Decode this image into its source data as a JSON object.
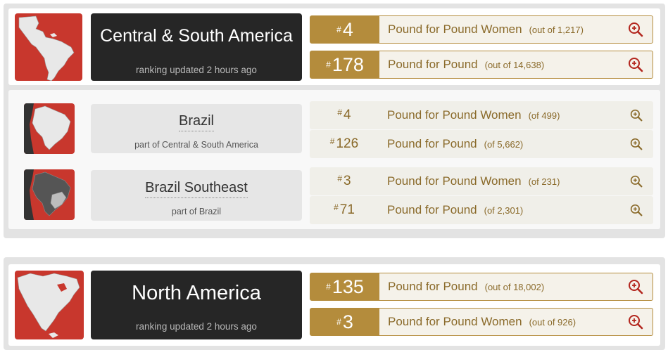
{
  "central_south_america": {
    "name": "Central & South America",
    "updated": "ranking updated 2 hours ago",
    "rankings": [
      {
        "hash": "#",
        "num": "4",
        "label": "Pound for Pound Women",
        "out_of": "(out of 1,217)"
      },
      {
        "hash": "#",
        "num": "178",
        "label": "Pound for Pound",
        "out_of": "(out of 14,638)"
      }
    ]
  },
  "brazil": {
    "name": "Brazil",
    "part_of": "part of Central & South America",
    "rankings": [
      {
        "hash": "#",
        "num": "4",
        "label": "Pound for Pound Women",
        "out_of": "(of 499)"
      },
      {
        "hash": "#",
        "num": "126",
        "label": "Pound for Pound",
        "out_of": "(of 5,662)"
      }
    ]
  },
  "brazil_southeast": {
    "name": "Brazil Southeast",
    "part_of": "part of Brazil",
    "rankings": [
      {
        "hash": "#",
        "num": "3",
        "label": "Pound for Pound Women",
        "out_of": "(of 231)"
      },
      {
        "hash": "#",
        "num": "71",
        "label": "Pound for Pound",
        "out_of": "(of 2,301)"
      }
    ]
  },
  "north_america": {
    "name": "North America",
    "updated": "ranking updated 2 hours ago",
    "rankings": [
      {
        "hash": "#",
        "num": "135",
        "label": "Pound for Pound",
        "out_of": "(out of 18,002)"
      },
      {
        "hash": "#",
        "num": "3",
        "label": "Pound for Pound Women",
        "out_of": "(out of 926)"
      }
    ]
  },
  "colors": {
    "gold": "#b48c3c",
    "map_red": "#c8372d",
    "dark_title": "#262626",
    "zoom_red": "#b3261e"
  }
}
